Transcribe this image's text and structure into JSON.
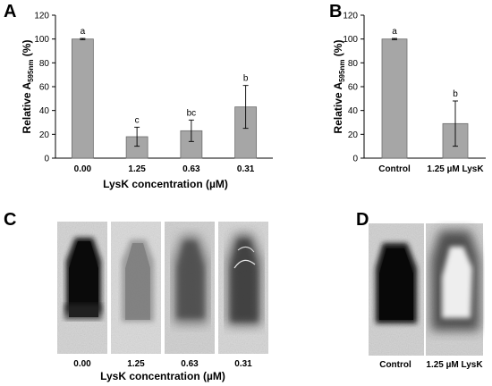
{
  "panels": {
    "a": "A",
    "b": "B",
    "c": "C",
    "d": "D"
  },
  "chart_data": [
    {
      "type": "bar",
      "panel": "A",
      "categories": [
        "0.00",
        "1.25",
        "0.63",
        "0.31"
      ],
      "values": [
        100,
        18,
        23,
        43
      ],
      "errors": [
        0.5,
        8,
        9,
        18
      ],
      "letters": [
        "a",
        "c",
        "bc",
        "b"
      ],
      "ylabel_main": "Relative A",
      "ylabel_sub": "595nm",
      "ylabel_unit": " (%)",
      "xlabel": "LysK concentration (µM)",
      "ylim": [
        0,
        120
      ],
      "yticks": [
        "0",
        "20",
        "40",
        "60",
        "80",
        "100",
        "120"
      ],
      "bar_color": "#a6a6a6",
      "grid": false
    },
    {
      "type": "bar",
      "panel": "B",
      "categories": [
        "Control",
        "1.25 µM LysK"
      ],
      "values": [
        100,
        29
      ],
      "errors": [
        0.5,
        19
      ],
      "letters": [
        "a",
        "b"
      ],
      "ylabel_main": "Relative A",
      "ylabel_sub": "595nm",
      "ylabel_unit": " (%)",
      "xlabel": "",
      "ylim": [
        0,
        120
      ],
      "yticks": [
        "0",
        "20",
        "40",
        "60",
        "80",
        "100",
        "120"
      ],
      "bar_color": "#a6a6a6",
      "grid": false
    }
  ],
  "photos_c": {
    "labels": [
      "0.00",
      "1.25",
      "0.63",
      "0.31"
    ],
    "xlabel": "LysK concentration (µM)"
  },
  "photos_d": {
    "labels": [
      "Control",
      "1.25 µM LysK"
    ]
  }
}
